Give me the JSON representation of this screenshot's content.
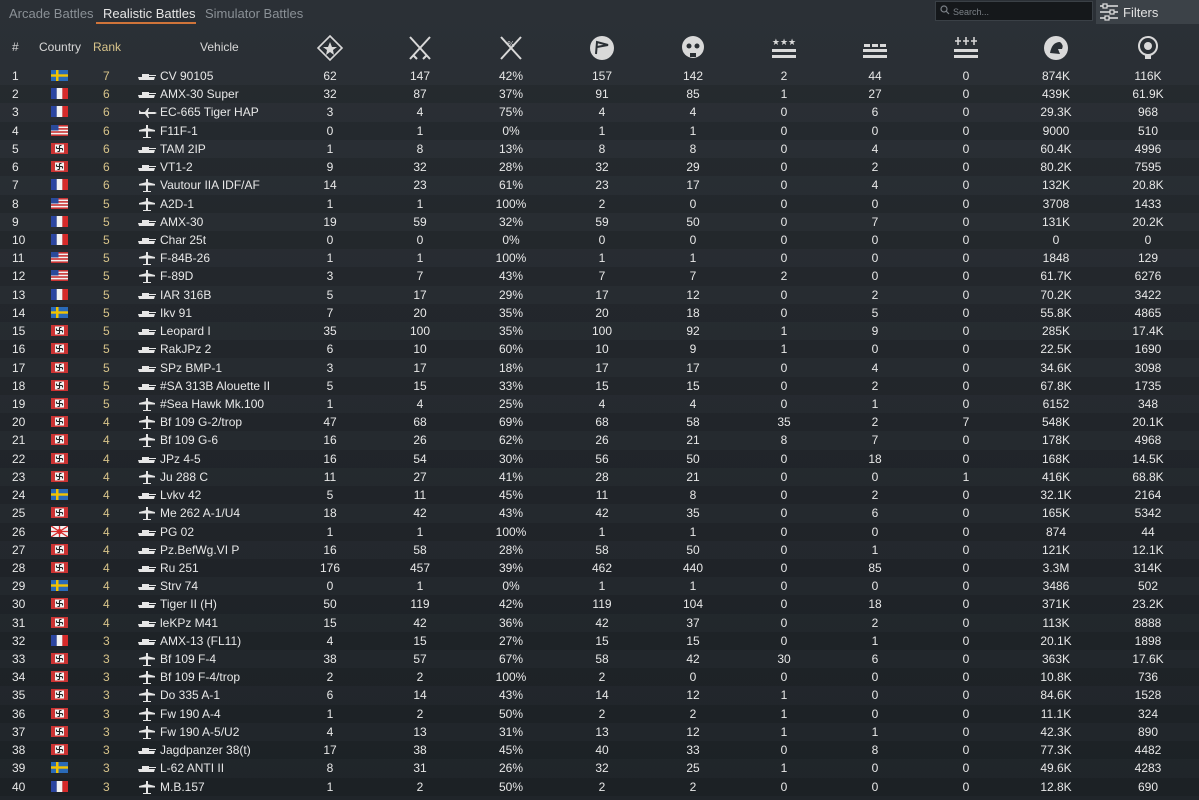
{
  "tabs": [
    {
      "label": "Arcade Battles",
      "active": false
    },
    {
      "label": "Realistic Battles",
      "active": true
    },
    {
      "label": "Simulator Battles",
      "active": false
    }
  ],
  "search": {
    "placeholder": "Search..."
  },
  "filters_label": "Filters",
  "accent_color": "#d0743a",
  "rank_color": "#d8c48a",
  "columns": {
    "num": "#",
    "country": "Country",
    "rank": "Rank",
    "vehicle": "Vehicle",
    "stat_icons": [
      "battles-icon",
      "victories-icon",
      "win-rate-icon",
      "respawns-icon",
      "deaths-icon",
      "air-kills-icon",
      "ground-kills-icon",
      "naval-kills-icon",
      "silver-lions-icon",
      "research-points-icon"
    ]
  },
  "rows": [
    {
      "num": "1",
      "country": "sweden",
      "rank": "7",
      "type": "tank",
      "vehicle": "CV 90105",
      "stats": [
        "62",
        "147",
        "42%",
        "157",
        "142",
        "2",
        "44",
        "0",
        "874K",
        "116K"
      ]
    },
    {
      "num": "2",
      "country": "france",
      "rank": "6",
      "type": "tank",
      "vehicle": "AMX-30 Super",
      "stats": [
        "32",
        "87",
        "37%",
        "91",
        "85",
        "1",
        "27",
        "0",
        "439K",
        "61.9K"
      ]
    },
    {
      "num": "3",
      "country": "france",
      "rank": "6",
      "type": "jet",
      "vehicle": "EC-665 Tiger HAP",
      "stats": [
        "3",
        "4",
        "75%",
        "4",
        "4",
        "0",
        "6",
        "0",
        "29.3K",
        "968"
      ]
    },
    {
      "num": "4",
      "country": "usa",
      "rank": "6",
      "type": "plane",
      "vehicle": "F11F-1",
      "stats": [
        "0",
        "1",
        "0%",
        "1",
        "1",
        "0",
        "0",
        "0",
        "9000",
        "510"
      ]
    },
    {
      "num": "5",
      "country": "germany",
      "rank": "6",
      "type": "tank",
      "vehicle": "TAM 2IP",
      "stats": [
        "1",
        "8",
        "13%",
        "8",
        "8",
        "0",
        "4",
        "0",
        "60.4K",
        "4996"
      ]
    },
    {
      "num": "6",
      "country": "germany",
      "rank": "6",
      "type": "tank",
      "vehicle": "VT1-2",
      "stats": [
        "9",
        "32",
        "28%",
        "32",
        "29",
        "0",
        "2",
        "0",
        "80.2K",
        "7595"
      ]
    },
    {
      "num": "7",
      "country": "france",
      "rank": "6",
      "type": "plane",
      "vehicle": "Vautour IIA IDF/AF",
      "stats": [
        "14",
        "23",
        "61%",
        "23",
        "17",
        "0",
        "4",
        "0",
        "132K",
        "20.8K"
      ]
    },
    {
      "num": "8",
      "country": "usa",
      "rank": "5",
      "type": "plane",
      "vehicle": "A2D-1",
      "stats": [
        "1",
        "1",
        "100%",
        "2",
        "0",
        "0",
        "0",
        "0",
        "3708",
        "1433"
      ]
    },
    {
      "num": "9",
      "country": "france",
      "rank": "5",
      "type": "tank",
      "vehicle": "AMX-30",
      "stats": [
        "19",
        "59",
        "32%",
        "59",
        "50",
        "0",
        "7",
        "0",
        "131K",
        "20.2K"
      ]
    },
    {
      "num": "10",
      "country": "france",
      "rank": "5",
      "type": "tank",
      "vehicle": "Char 25t",
      "stats": [
        "0",
        "0",
        "0%",
        "0",
        "0",
        "0",
        "0",
        "0",
        "0",
        "0"
      ]
    },
    {
      "num": "11",
      "country": "usa",
      "rank": "5",
      "type": "plane",
      "vehicle": "F-84B-26",
      "stats": [
        "1",
        "1",
        "100%",
        "1",
        "1",
        "0",
        "0",
        "0",
        "1848",
        "129"
      ]
    },
    {
      "num": "12",
      "country": "usa",
      "rank": "5",
      "type": "plane",
      "vehicle": "F-89D",
      "stats": [
        "3",
        "7",
        "43%",
        "7",
        "7",
        "2",
        "0",
        "0",
        "61.7K",
        "6276"
      ]
    },
    {
      "num": "13",
      "country": "france",
      "rank": "5",
      "type": "tank",
      "vehicle": "IAR 316B",
      "stats": [
        "5",
        "17",
        "29%",
        "17",
        "12",
        "0",
        "2",
        "0",
        "70.2K",
        "3422"
      ]
    },
    {
      "num": "14",
      "country": "sweden",
      "rank": "5",
      "type": "tank",
      "vehicle": "Ikv 91",
      "stats": [
        "7",
        "20",
        "35%",
        "20",
        "18",
        "0",
        "5",
        "0",
        "55.8K",
        "4865"
      ]
    },
    {
      "num": "15",
      "country": "germany",
      "rank": "5",
      "type": "tank",
      "vehicle": "Leopard I",
      "stats": [
        "35",
        "100",
        "35%",
        "100",
        "92",
        "1",
        "9",
        "0",
        "285K",
        "17.4K"
      ]
    },
    {
      "num": "16",
      "country": "germany",
      "rank": "5",
      "type": "tank",
      "vehicle": "RakJPz 2",
      "stats": [
        "6",
        "10",
        "60%",
        "10",
        "9",
        "1",
        "0",
        "0",
        "22.5K",
        "1690"
      ]
    },
    {
      "num": "17",
      "country": "germany",
      "rank": "5",
      "type": "tank",
      "vehicle": "SPz BMP-1",
      "stats": [
        "3",
        "17",
        "18%",
        "17",
        "17",
        "0",
        "4",
        "0",
        "34.6K",
        "3098"
      ]
    },
    {
      "num": "18",
      "country": "germany",
      "rank": "5",
      "type": "tank",
      "vehicle": "#SA 313B Alouette II",
      "stats": [
        "5",
        "15",
        "33%",
        "15",
        "15",
        "0",
        "2",
        "0",
        "67.8K",
        "1735"
      ]
    },
    {
      "num": "19",
      "country": "germany",
      "rank": "5",
      "type": "plane",
      "vehicle": "#Sea Hawk Mk.100",
      "stats": [
        "1",
        "4",
        "25%",
        "4",
        "4",
        "0",
        "1",
        "0",
        "6152",
        "348"
      ]
    },
    {
      "num": "20",
      "country": "germany",
      "rank": "4",
      "type": "plane",
      "vehicle": "Bf 109 G-2/trop",
      "stats": [
        "47",
        "68",
        "69%",
        "68",
        "58",
        "35",
        "2",
        "7",
        "548K",
        "20.1K"
      ]
    },
    {
      "num": "21",
      "country": "germany",
      "rank": "4",
      "type": "plane",
      "vehicle": "Bf 109 G-6",
      "stats": [
        "16",
        "26",
        "62%",
        "26",
        "21",
        "8",
        "7",
        "0",
        "178K",
        "4968"
      ]
    },
    {
      "num": "22",
      "country": "germany",
      "rank": "4",
      "type": "tank",
      "vehicle": "JPz 4-5",
      "stats": [
        "16",
        "54",
        "30%",
        "56",
        "50",
        "0",
        "18",
        "0",
        "168K",
        "14.5K"
      ]
    },
    {
      "num": "23",
      "country": "germany",
      "rank": "4",
      "type": "plane",
      "vehicle": "Ju 288 C",
      "stats": [
        "11",
        "27",
        "41%",
        "28",
        "21",
        "0",
        "0",
        "1",
        "416K",
        "68.8K"
      ]
    },
    {
      "num": "24",
      "country": "sweden",
      "rank": "4",
      "type": "tank",
      "vehicle": "Lvkv 42",
      "stats": [
        "5",
        "11",
        "45%",
        "11",
        "8",
        "0",
        "2",
        "0",
        "32.1K",
        "2164"
      ]
    },
    {
      "num": "25",
      "country": "germany",
      "rank": "4",
      "type": "plane",
      "vehicle": "Me 262 A-1/U4",
      "stats": [
        "18",
        "42",
        "43%",
        "42",
        "35",
        "0",
        "6",
        "0",
        "165K",
        "5342"
      ]
    },
    {
      "num": "26",
      "country": "japan",
      "rank": "4",
      "type": "tank",
      "vehicle": "PG 02",
      "stats": [
        "1",
        "1",
        "100%",
        "1",
        "1",
        "0",
        "0",
        "0",
        "874",
        "44"
      ]
    },
    {
      "num": "27",
      "country": "germany",
      "rank": "4",
      "type": "tank",
      "vehicle": "Pz.BefWg.VI P",
      "stats": [
        "16",
        "58",
        "28%",
        "58",
        "50",
        "0",
        "1",
        "0",
        "121K",
        "12.1K"
      ]
    },
    {
      "num": "28",
      "country": "germany",
      "rank": "4",
      "type": "tank",
      "vehicle": "Ru 251",
      "stats": [
        "176",
        "457",
        "39%",
        "462",
        "440",
        "0",
        "85",
        "0",
        "3.3M",
        "314K"
      ]
    },
    {
      "num": "29",
      "country": "sweden",
      "rank": "4",
      "type": "tank",
      "vehicle": "Strv 74",
      "stats": [
        "0",
        "1",
        "0%",
        "1",
        "1",
        "0",
        "0",
        "0",
        "3486",
        "502"
      ]
    },
    {
      "num": "30",
      "country": "germany",
      "rank": "4",
      "type": "tank",
      "vehicle": "Tiger II (H)",
      "stats": [
        "50",
        "119",
        "42%",
        "119",
        "104",
        "0",
        "18",
        "0",
        "371K",
        "23.2K"
      ]
    },
    {
      "num": "31",
      "country": "germany",
      "rank": "4",
      "type": "tank",
      "vehicle": "leKPz M41",
      "stats": [
        "15",
        "42",
        "36%",
        "42",
        "37",
        "0",
        "2",
        "0",
        "113K",
        "8888"
      ]
    },
    {
      "num": "32",
      "country": "france",
      "rank": "3",
      "type": "tank",
      "vehicle": "AMX-13 (FL11)",
      "stats": [
        "4",
        "15",
        "27%",
        "15",
        "15",
        "0",
        "1",
        "0",
        "20.1K",
        "1898"
      ]
    },
    {
      "num": "33",
      "country": "germany",
      "rank": "3",
      "type": "plane",
      "vehicle": "Bf 109 F-4",
      "stats": [
        "38",
        "57",
        "67%",
        "58",
        "42",
        "30",
        "6",
        "0",
        "363K",
        "17.6K"
      ]
    },
    {
      "num": "34",
      "country": "germany",
      "rank": "3",
      "type": "plane",
      "vehicle": "Bf 109 F-4/trop",
      "stats": [
        "2",
        "2",
        "100%",
        "2",
        "0",
        "0",
        "0",
        "0",
        "10.8K",
        "736"
      ]
    },
    {
      "num": "35",
      "country": "germany",
      "rank": "3",
      "type": "plane",
      "vehicle": "Do 335 A-1",
      "stats": [
        "6",
        "14",
        "43%",
        "14",
        "12",
        "1",
        "0",
        "0",
        "84.6K",
        "1528"
      ]
    },
    {
      "num": "36",
      "country": "germany",
      "rank": "3",
      "type": "plane",
      "vehicle": "Fw 190 A-4",
      "stats": [
        "1",
        "2",
        "50%",
        "2",
        "2",
        "1",
        "0",
        "0",
        "11.1K",
        "324"
      ]
    },
    {
      "num": "37",
      "country": "germany",
      "rank": "3",
      "type": "plane",
      "vehicle": "Fw 190 A-5/U2",
      "stats": [
        "4",
        "13",
        "31%",
        "13",
        "12",
        "1",
        "1",
        "0",
        "42.3K",
        "890"
      ]
    },
    {
      "num": "38",
      "country": "germany",
      "rank": "3",
      "type": "tank",
      "vehicle": "Jagdpanzer 38(t)",
      "stats": [
        "17",
        "38",
        "45%",
        "40",
        "33",
        "0",
        "8",
        "0",
        "77.3K",
        "4482"
      ]
    },
    {
      "num": "39",
      "country": "sweden",
      "rank": "3",
      "type": "tank",
      "vehicle": "L-62 ANTI II",
      "stats": [
        "8",
        "31",
        "26%",
        "32",
        "25",
        "1",
        "0",
        "0",
        "49.6K",
        "4283"
      ]
    },
    {
      "num": "40",
      "country": "france",
      "rank": "3",
      "type": "plane",
      "vehicle": "M.B.157",
      "stats": [
        "1",
        "2",
        "50%",
        "2",
        "2",
        "0",
        "0",
        "0",
        "12.8K",
        "690"
      ]
    }
  ]
}
